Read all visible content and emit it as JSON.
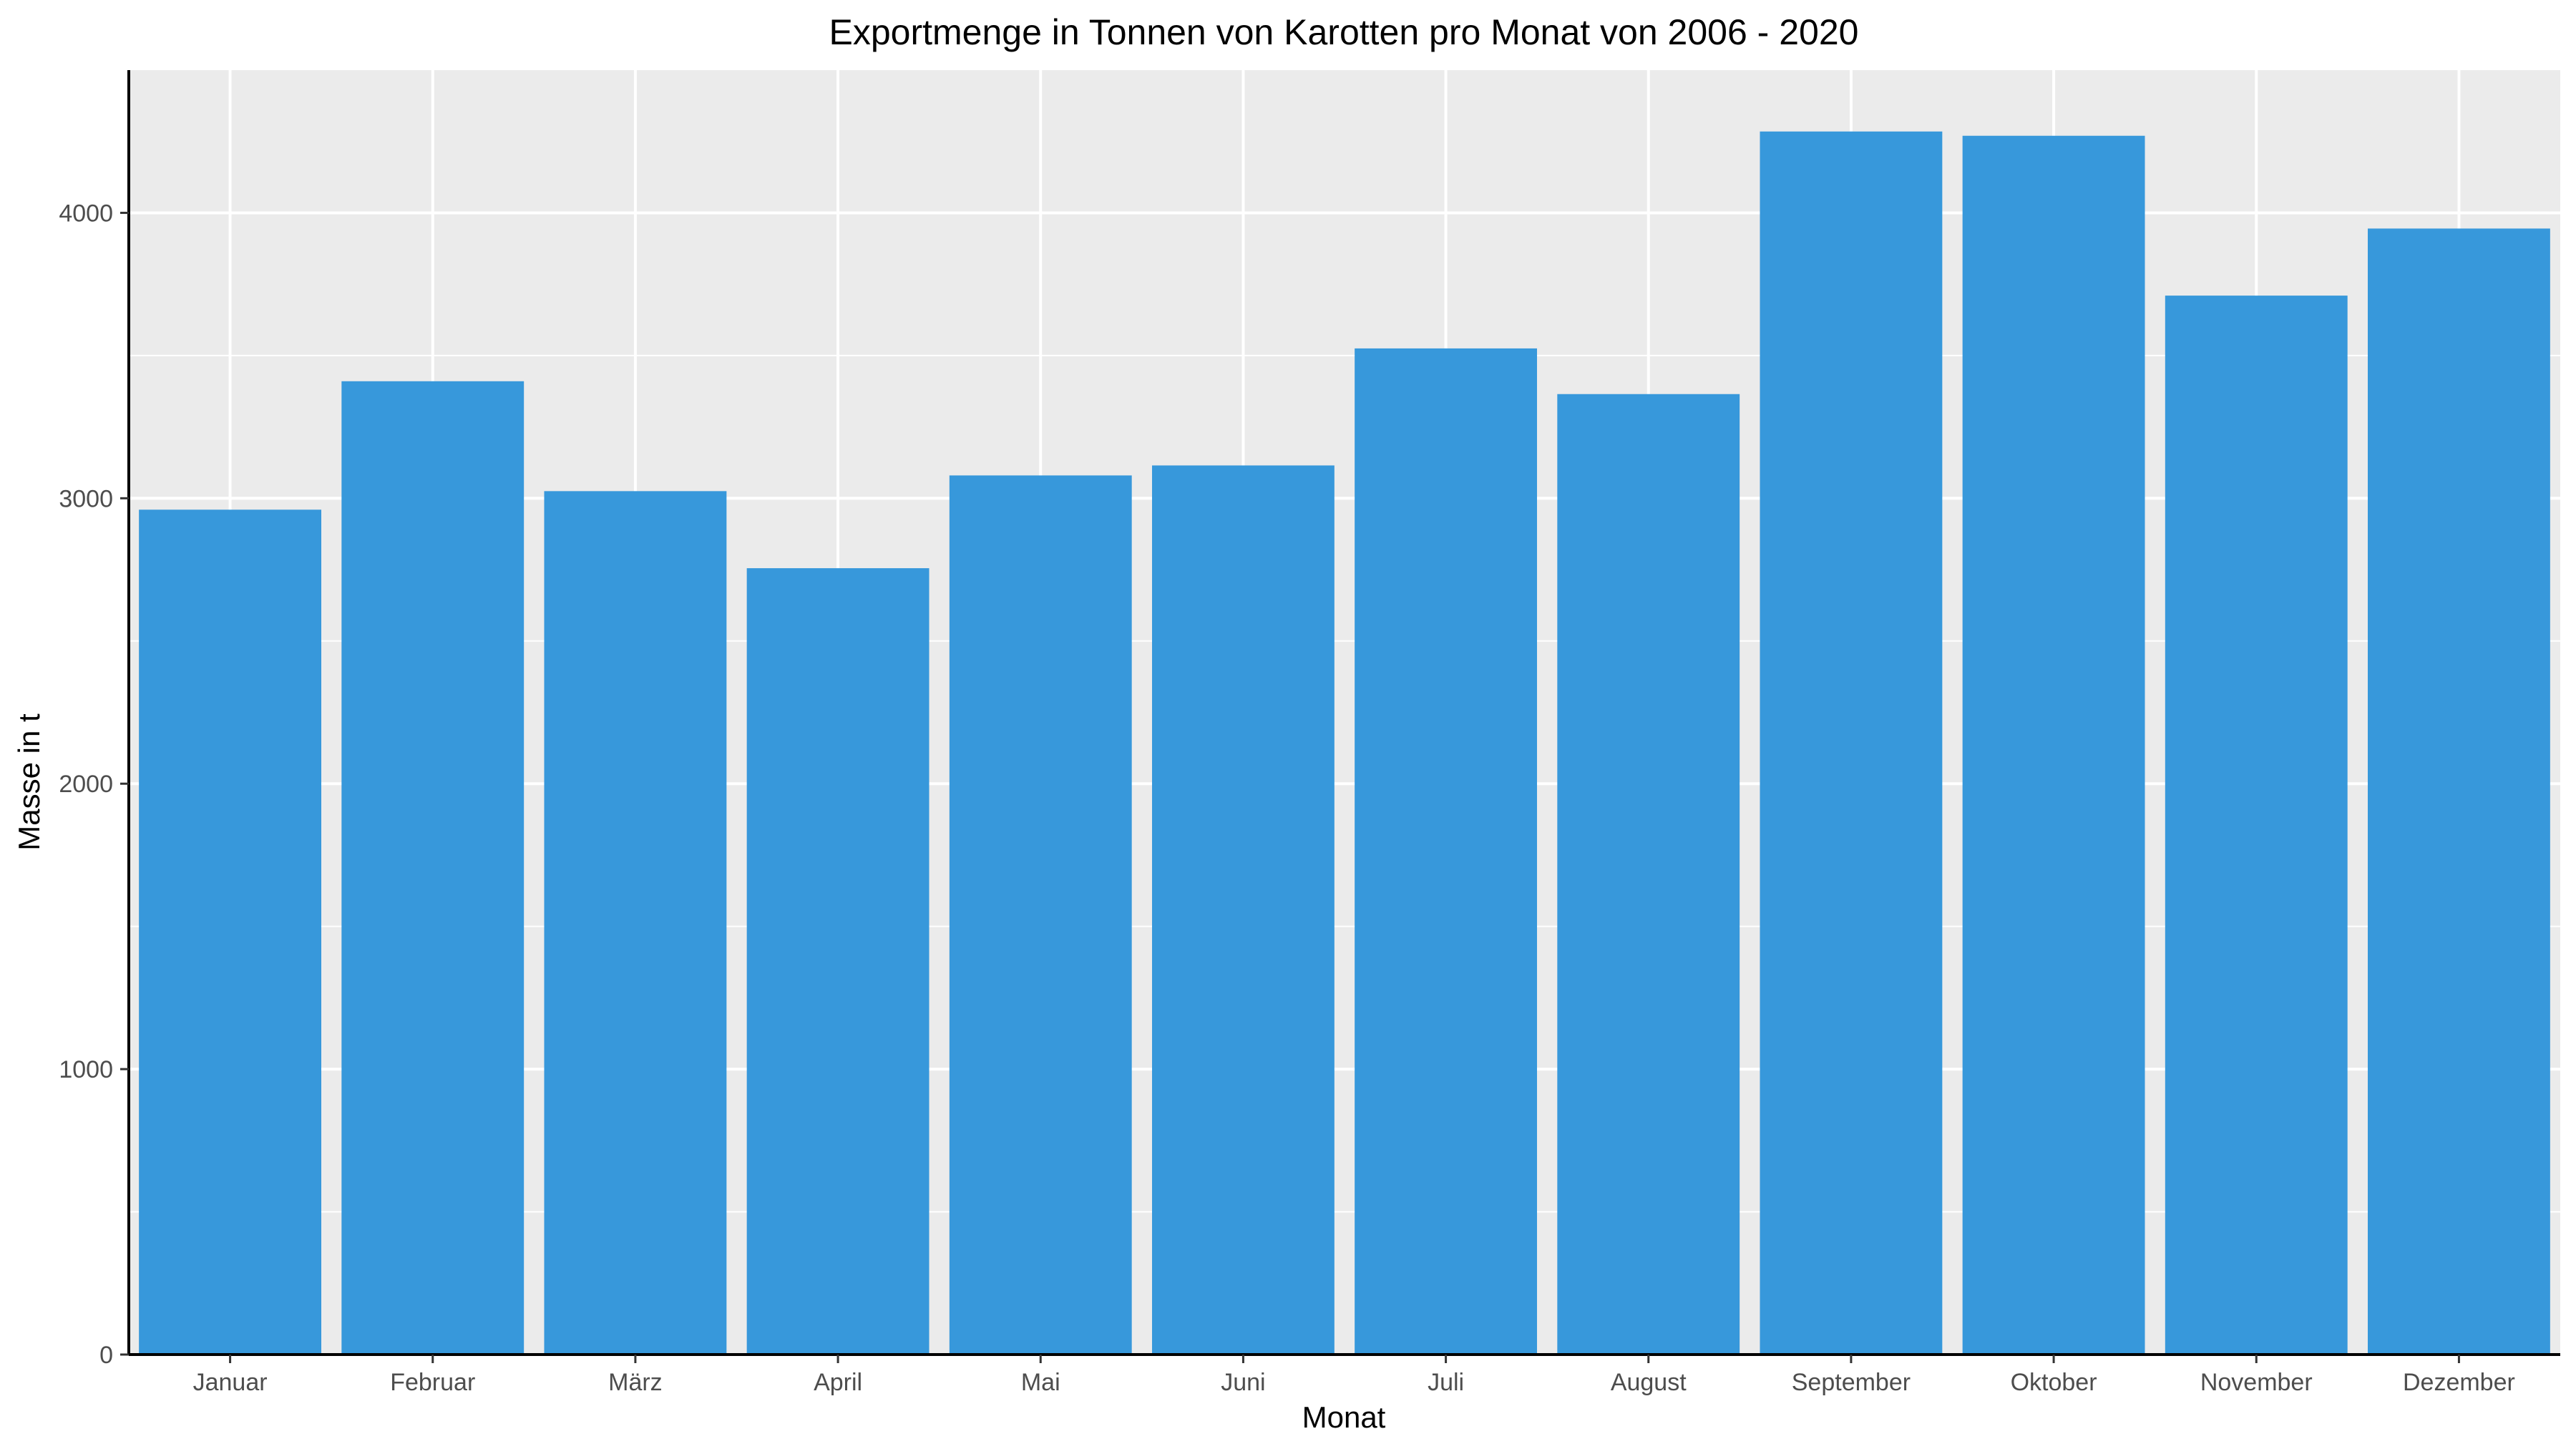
{
  "chart_data": {
    "type": "bar",
    "title": "Exportmenge in Tonnen von Karotten pro Monat von 2006 - 2020",
    "xlabel": "Monat",
    "ylabel": "Masse in t",
    "categories": [
      "Januar",
      "Februar",
      "März",
      "April",
      "Mai",
      "Juni",
      "Juli",
      "August",
      "September",
      "Oktober",
      "November",
      "Dezember"
    ],
    "values": [
      2960,
      3410,
      3025,
      2755,
      3080,
      3115,
      3525,
      3365,
      4285,
      4270,
      3710,
      3945
    ],
    "ylim": [
      0,
      4500
    ],
    "yticks": [
      0,
      1000,
      2000,
      3000,
      4000
    ],
    "ytick_labels": [
      "0",
      "1000",
      "2000",
      "3000",
      "4000"
    ],
    "grid": true,
    "colors": {
      "bar": "#3798DB",
      "panel": "#EBEBEB",
      "grid": "#FFFFFF",
      "axis": "#000000"
    }
  }
}
